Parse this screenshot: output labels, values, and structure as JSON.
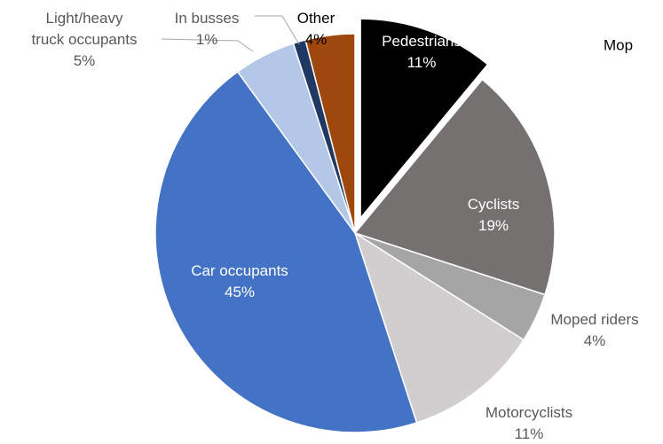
{
  "chart_data": {
    "type": "pie",
    "annotation": "Mop",
    "categories": [
      "Pedestrians",
      "Cyclists",
      "Moped riders",
      "Motorcyclists",
      "Car occupants",
      "Light/heavy truck occupants",
      "In busses",
      "Other"
    ],
    "values": [
      11,
      19,
      4,
      11,
      45,
      5,
      1,
      4
    ],
    "value_labels": [
      "11%",
      "19%",
      "4%",
      "11%",
      "45%",
      "5%",
      "1%",
      "4%"
    ],
    "colors": [
      "#000000",
      "#767171",
      "#a5a5a5",
      "#d0cece",
      "#4472c4",
      "#b4c7e7",
      "#203864",
      "#9e480e"
    ],
    "exploded": [
      0
    ]
  }
}
